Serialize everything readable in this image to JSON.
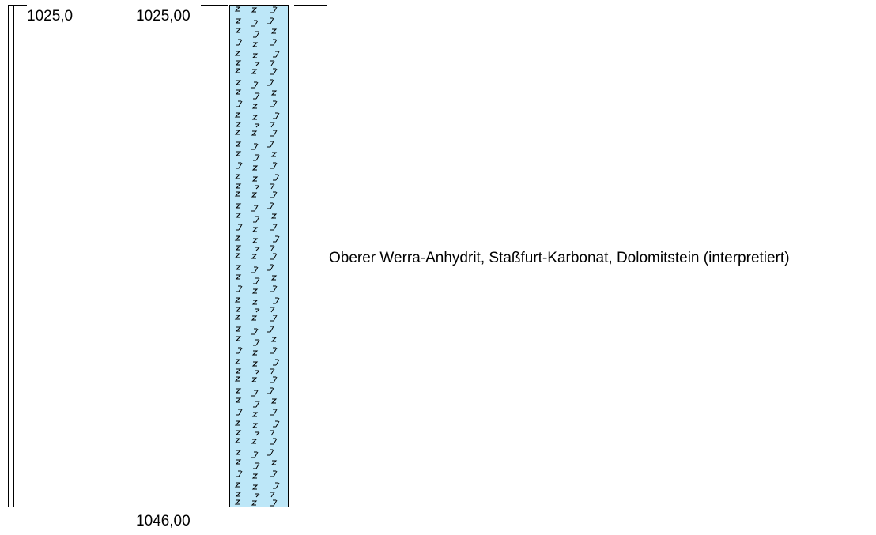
{
  "scale": {
    "top_label": "1025,0"
  },
  "layers": [
    {
      "top_depth_label": "1025,00",
      "bottom_depth_label": "1046,00",
      "description": "Oberer Werra-Anhydrit, Staßfurt-Karbonat, Dolomitstein (interpretiert)",
      "fill_color": "#bde7f8",
      "pattern_symbols": [
        "Z",
        "anhydrite-stroke"
      ]
    }
  ],
  "colors": {
    "line": "#000000",
    "layer_fill": "#bde7f8"
  }
}
